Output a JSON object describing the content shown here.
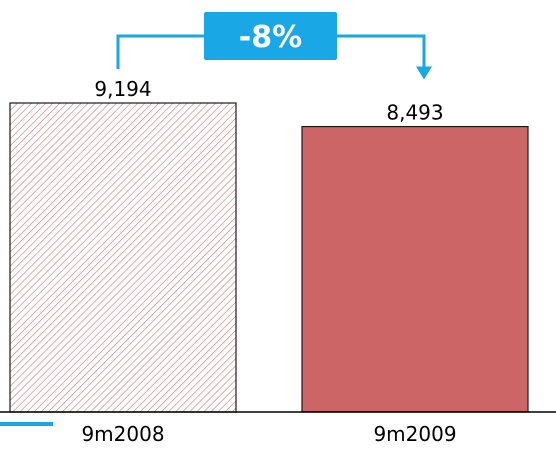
{
  "chart_data": {
    "type": "bar",
    "categories": [
      "9m2008",
      "9m2009"
    ],
    "values": [
      9194,
      8493
    ],
    "value_labels": [
      "9,194",
      "8,493"
    ],
    "bar_styles": [
      "hatched",
      "solid"
    ],
    "change_label": "-8%",
    "ylim": [
      0,
      9194
    ],
    "colors": {
      "hatch_stroke": "#c9767a",
      "solid_fill": "#cb6566",
      "bar_outline": "#1a1a1a",
      "accent": "#1aa7e6",
      "axis": "#000000",
      "text": "#000000"
    }
  }
}
